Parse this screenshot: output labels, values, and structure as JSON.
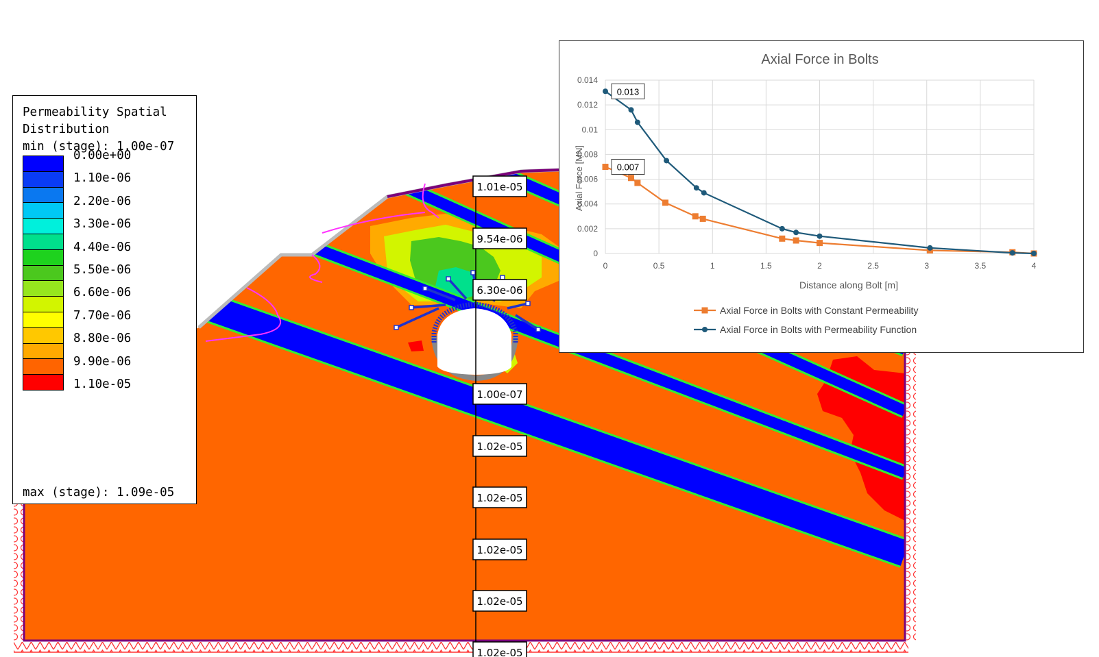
{
  "legend": {
    "title_line1": "Permeability Spatial",
    "title_line2": "Distribution",
    "min_label": "min (stage): 1.00e-07",
    "max_label": "max (stage): 1.09e-05",
    "labels": [
      "0.00e+00",
      "1.10e-06",
      "2.20e-06",
      "3.30e-06",
      "4.40e-06",
      "5.50e-06",
      "6.60e-06",
      "7.70e-06",
      "8.80e-06",
      "9.90e-06",
      "1.10e-05"
    ],
    "colors": [
      "#0000ff",
      "#0a3cf5",
      "#0a78f0",
      "#00c8f5",
      "#00f0dc",
      "#00e08c",
      "#1ed21e",
      "#4bc81e",
      "#96e61e",
      "#d2f500",
      "#ffff00",
      "#ffc800",
      "#ffaa00",
      "#ff6400",
      "#ff0000"
    ]
  },
  "query_line": {
    "labels": [
      "1.01e-05",
      "9.54e-06",
      "6.30e-06",
      "1.00e-07",
      "1.02e-05",
      "1.02e-05",
      "1.02e-05",
      "1.02e-05",
      "1.02e-05"
    ]
  },
  "colors": {
    "rock": "#ff6600",
    "joint_band": "#0000ff",
    "joint_edge": "#33ee33",
    "boundary": "#7b007b",
    "support": "#ff3333",
    "bolt": "#0000cc",
    "series_constant": "#ed7d31",
    "series_function": "#1f5a7a"
  },
  "chart_data": {
    "type": "line",
    "title": "Axial Force in Bolts",
    "xlabel": "Distance along Bolt [m]",
    "ylabel": "Axial Force [MN]",
    "xlim": [
      0,
      4
    ],
    "ylim": [
      0,
      0.014
    ],
    "xticks": [
      "0",
      "0.5",
      "1",
      "1.5",
      "2",
      "2.5",
      "3",
      "3.5",
      "4"
    ],
    "yticks": [
      "0",
      "0.002",
      "0.004",
      "0.006",
      "0.008",
      "0.01",
      "0.012",
      "0.014"
    ],
    "grid": true,
    "legend_position": "bottom",
    "series": [
      {
        "name": "Axial Force in Bolts with Constant Permeability",
        "marker": "square",
        "x": [
          0,
          0.24,
          0.3,
          0.56,
          0.84,
          0.91,
          1.65,
          1.78,
          2.0,
          3.03,
          3.8,
          4.0
        ],
        "y": [
          0.007,
          0.0061,
          0.0057,
          0.0041,
          0.003,
          0.0028,
          0.0012,
          0.00105,
          0.00085,
          0.00025,
          0.0001,
          0.0
        ]
      },
      {
        "name": "Axial Force in Bolts with Permeability Function",
        "marker": "circle",
        "x": [
          0,
          0.24,
          0.3,
          0.57,
          0.85,
          0.92,
          1.65,
          1.78,
          2.0,
          3.03,
          3.8,
          4.0
        ],
        "y": [
          0.0131,
          0.0116,
          0.0106,
          0.0075,
          0.0053,
          0.0049,
          0.002,
          0.0017,
          0.0014,
          0.00045,
          5e-05,
          0.0
        ]
      }
    ],
    "annotations": [
      {
        "text": "0.013",
        "x": 0,
        "y": 0.0131
      },
      {
        "text": "0.007",
        "x": 0,
        "y": 0.007
      }
    ]
  }
}
